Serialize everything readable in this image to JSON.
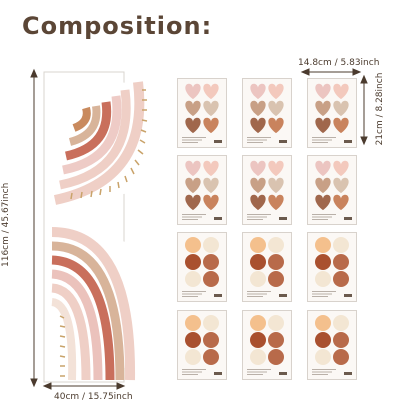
{
  "header": {
    "title": "Composition:"
  },
  "dimensions": {
    "panel_height": "116cm / 45.67inch",
    "panel_width": "40cm / 15.75inch",
    "sheet_width": "14.8cm / 5.83inch",
    "sheet_height": "21cm / 8.28inch"
  },
  "sheets": {
    "heart_rows": 2,
    "dot_rows": 2,
    "columns": 3
  },
  "colors": {
    "heart_pink": "#f3c9bd",
    "heart_blush": "#ecc5c1",
    "heart_tan": "#c8a086",
    "heart_beige": "#d9c3b0",
    "heart_brown": "#a0674c",
    "heart_terracotta": "#c9835d",
    "dot_cream": "#f3e6d3",
    "dot_peach": "#f4c08d",
    "dot_rust": "#a9502f",
    "dot_brown": "#8f4a31",
    "dot_clay": "#b86a4a",
    "rainbow_rust": "#c96f5c",
    "rainbow_pink": "#e3a8a0",
    "rainbow_blush": "#efcfc6",
    "rainbow_tan": "#d8b49a",
    "dash_gold": "#c9a36a"
  }
}
